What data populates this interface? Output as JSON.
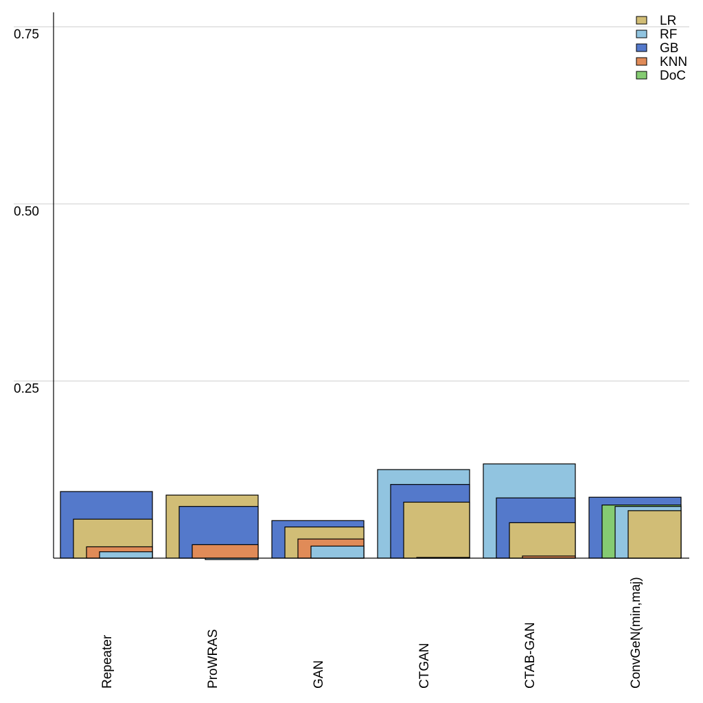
{
  "chart_data": {
    "type": "bar",
    "layout": "overlapped-nested",
    "title": "",
    "xlabel": "",
    "ylabel": "",
    "ylim": [
      0,
      0.77
    ],
    "yticks": [
      0.25,
      0.5,
      0.75
    ],
    "ytick_labels": [
      "0.25",
      "0.50",
      "0.75"
    ],
    "grid": "horizontal",
    "legend_position": "top-right",
    "categories": [
      "Repeater",
      "ProWRAS",
      "GAN",
      "CTGAN",
      "CTAB-GAN",
      "ConvGeN(min,maj)"
    ],
    "series": [
      {
        "name": "LR",
        "color": "#d1bd76",
        "values": [
          0.055,
          0.089,
          0.044,
          0.079,
          0.05,
          0.067
        ]
      },
      {
        "name": "RF",
        "color": "#91c4e0",
        "values": [
          0.009,
          -0.002,
          0.017,
          0.125,
          0.133,
          0.073
        ]
      },
      {
        "name": "GB",
        "color": "#5479cb",
        "values": [
          0.094,
          0.073,
          0.053,
          0.104,
          0.085,
          0.086
        ]
      },
      {
        "name": "KNN",
        "color": "#e08b58",
        "values": [
          0.016,
          0.019,
          0.027,
          0.001,
          0.003,
          null
        ]
      },
      {
        "name": "DoC",
        "color": "#85cb72",
        "values": [
          null,
          null,
          null,
          null,
          null,
          0.075
        ]
      }
    ]
  }
}
